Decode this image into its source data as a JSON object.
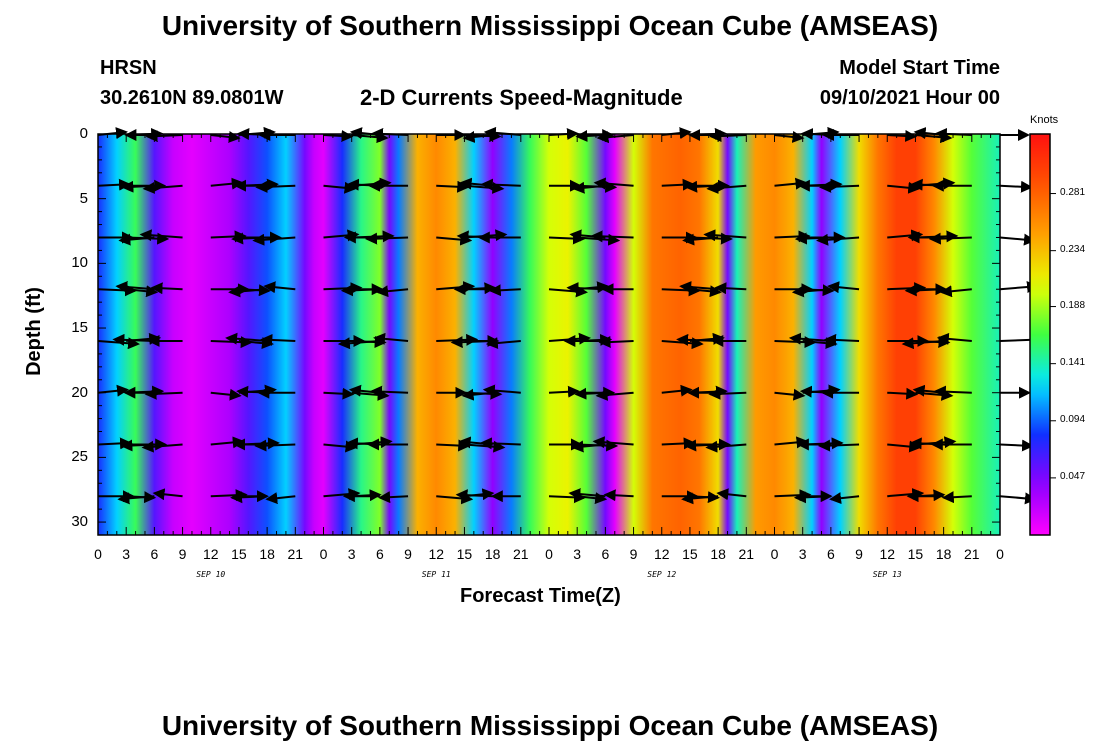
{
  "header": {
    "title": "University of Southern Mississippi Ocean Cube (AMSEAS)",
    "station": "HRSN",
    "location": "30.2610N  89.0801W",
    "subtitle": "2-D Currents Speed-Magnitude",
    "model_start_label": "Model Start Time",
    "model_start_value": "09/10/2021 Hour 00"
  },
  "footer": {
    "title": "University of Southern Mississippi Ocean Cube (AMSEAS)"
  },
  "colorbar": {
    "unit": "Knots",
    "ticks": [
      "0.281",
      "0.234",
      "0.188",
      "0.141",
      "0.094",
      "0.047"
    ],
    "tick_values": [
      0.281,
      0.234,
      0.188,
      0.141,
      0.094,
      0.047
    ],
    "range": [
      0,
      0.33
    ]
  },
  "chart_data": {
    "type": "heatmap",
    "title": "2-D Currents Speed-Magnitude",
    "xlabel": "Forecast Time(Z)",
    "ylabel": "Depth (ft)",
    "x_tick_labels": [
      "0",
      "3",
      "6",
      "9",
      "12",
      "15",
      "18",
      "21",
      "0",
      "3",
      "6",
      "9",
      "12",
      "15",
      "18",
      "21",
      "0",
      "3",
      "6",
      "9",
      "12",
      "15",
      "18",
      "21",
      "0",
      "3",
      "6",
      "9",
      "12",
      "15",
      "18",
      "21",
      "0"
    ],
    "x_hours_range": [
      0,
      96
    ],
    "date_labels": [
      {
        "label": "SEP 10",
        "hour": 12
      },
      {
        "label": "SEP 11",
        "hour": 36
      },
      {
        "label": "SEP 12",
        "hour": 60
      },
      {
        "label": "SEP 13",
        "hour": 84
      }
    ],
    "y_ticks": [
      0,
      5,
      10,
      15,
      20,
      25,
      30
    ],
    "ylim": [
      0,
      31
    ],
    "speed_by_hour": [
      {
        "hour": 0,
        "speed": 0.08
      },
      {
        "hour": 2,
        "speed": 0.12
      },
      {
        "hour": 4,
        "speed": 0.16
      },
      {
        "hour": 6,
        "speed": 0.06
      },
      {
        "hour": 8,
        "speed": 0.02
      },
      {
        "hour": 10,
        "speed": 0.01
      },
      {
        "hour": 12,
        "speed": 0.02
      },
      {
        "hour": 14,
        "speed": 0.03
      },
      {
        "hour": 16,
        "speed": 0.06
      },
      {
        "hour": 18,
        "speed": 0.09
      },
      {
        "hour": 20,
        "speed": 0.12
      },
      {
        "hour": 22,
        "speed": 0.05
      },
      {
        "hour": 23,
        "speed": 0.02
      },
      {
        "hour": 24,
        "speed": 0.01
      },
      {
        "hour": 26,
        "speed": 0.08
      },
      {
        "hour": 28,
        "speed": 0.15
      },
      {
        "hour": 30,
        "speed": 0.18
      },
      {
        "hour": 31,
        "speed": 0.05
      },
      {
        "hour": 32,
        "speed": 0.1
      },
      {
        "hour": 34,
        "speed": 0.24
      },
      {
        "hour": 36,
        "speed": 0.26
      },
      {
        "hour": 38,
        "speed": 0.24
      },
      {
        "hour": 40,
        "speed": 0.12
      },
      {
        "hour": 42,
        "speed": 0.04
      },
      {
        "hour": 44,
        "speed": 0.1
      },
      {
        "hour": 46,
        "speed": 0.16
      },
      {
        "hour": 48,
        "speed": 0.2
      },
      {
        "hour": 50,
        "speed": 0.21
      },
      {
        "hour": 52,
        "speed": 0.17
      },
      {
        "hour": 54,
        "speed": 0.05
      },
      {
        "hour": 55,
        "speed": 0.01
      },
      {
        "hour": 57,
        "speed": 0.2
      },
      {
        "hour": 59,
        "speed": 0.27
      },
      {
        "hour": 62,
        "speed": 0.28
      },
      {
        "hour": 64,
        "speed": 0.27
      },
      {
        "hour": 66,
        "speed": 0.22
      },
      {
        "hour": 67,
        "speed": 0.05
      },
      {
        "hour": 68,
        "speed": 0.14
      },
      {
        "hour": 70,
        "speed": 0.25
      },
      {
        "hour": 72,
        "speed": 0.26
      },
      {
        "hour": 74,
        "speed": 0.24
      },
      {
        "hour": 76,
        "speed": 0.12
      },
      {
        "hour": 77,
        "speed": 0.04
      },
      {
        "hour": 79,
        "speed": 0.12
      },
      {
        "hour": 81,
        "speed": 0.22
      },
      {
        "hour": 83,
        "speed": 0.27
      },
      {
        "hour": 85,
        "speed": 0.3
      },
      {
        "hour": 87,
        "speed": 0.3
      },
      {
        "hour": 89,
        "speed": 0.26
      },
      {
        "hour": 91,
        "speed": 0.2
      },
      {
        "hour": 93,
        "speed": 0.17
      },
      {
        "hour": 96,
        "speed": 0.14
      }
    ],
    "vector_depths": [
      0,
      4,
      8,
      12,
      16,
      20,
      24,
      28
    ],
    "vector_hours": [
      0,
      3,
      6,
      9,
      12,
      15,
      18,
      21,
      24,
      27,
      30,
      33,
      36,
      39,
      42,
      45,
      48,
      51,
      54,
      57,
      60,
      63,
      66,
      69,
      72,
      75,
      78,
      81,
      84,
      87,
      90,
      93,
      96
    ]
  }
}
